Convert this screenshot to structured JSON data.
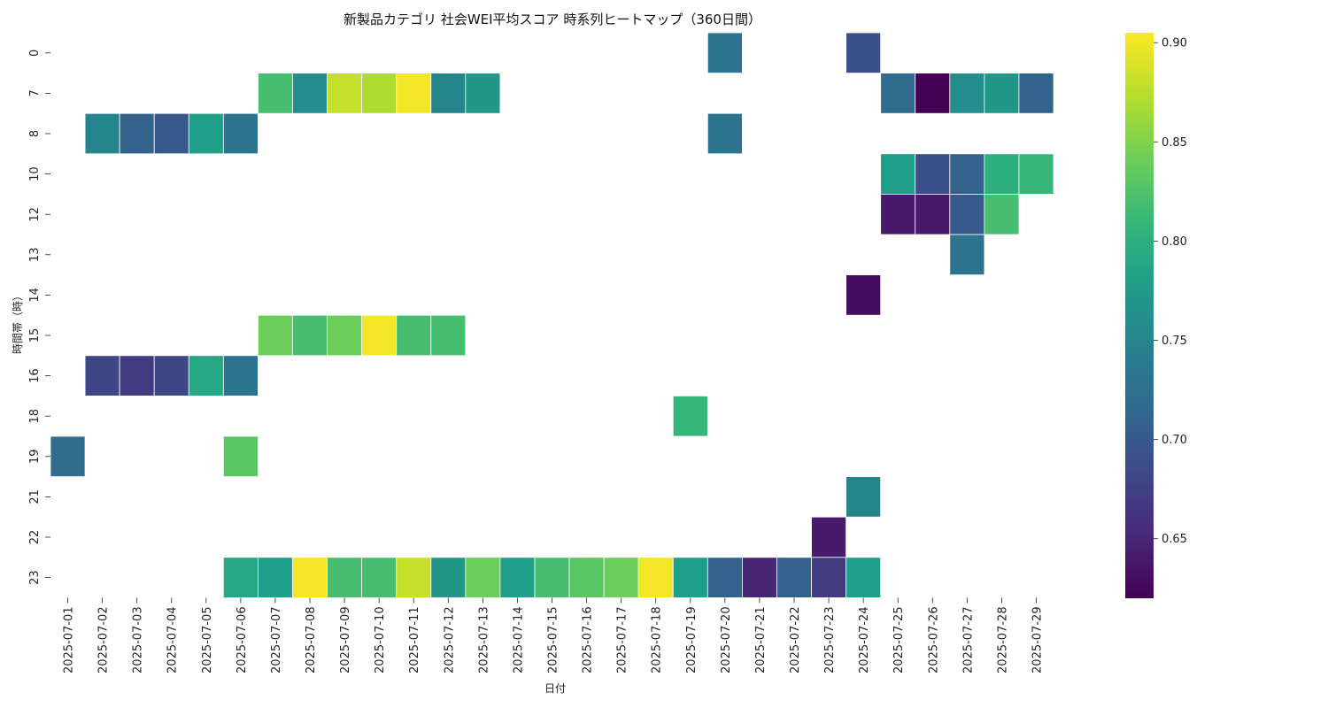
{
  "chart_data": {
    "type": "heatmap",
    "title": "新製品カテゴリ 社会WEI平均スコア 時系列ヒートマップ（360日間）",
    "xlabel": "日付",
    "ylabel": "時間帯（時）",
    "x": [
      "2025-07-01",
      "2025-07-02",
      "2025-07-03",
      "2025-07-04",
      "2025-07-05",
      "2025-07-06",
      "2025-07-07",
      "2025-07-08",
      "2025-07-09",
      "2025-07-10",
      "2025-07-11",
      "2025-07-12",
      "2025-07-13",
      "2025-07-14",
      "2025-07-15",
      "2025-07-16",
      "2025-07-17",
      "2025-07-18",
      "2025-07-19",
      "2025-07-20",
      "2025-07-21",
      "2025-07-22",
      "2025-07-23",
      "2025-07-24",
      "2025-07-25",
      "2025-07-26",
      "2025-07-27",
      "2025-07-28",
      "2025-07-29"
    ],
    "y": [
      "0",
      "7",
      "8",
      "10",
      "12",
      "13",
      "14",
      "15",
      "16",
      "18",
      "19",
      "21",
      "22",
      "23"
    ],
    "values": [
      [
        null,
        null,
        null,
        null,
        null,
        null,
        null,
        null,
        null,
        null,
        null,
        null,
        null,
        null,
        null,
        null,
        null,
        null,
        null,
        0.73,
        null,
        null,
        null,
        0.69,
        null,
        null,
        null,
        null,
        null
      ],
      [
        null,
        null,
        null,
        null,
        null,
        null,
        0.82,
        0.76,
        0.88,
        0.87,
        0.9,
        0.75,
        0.77,
        null,
        null,
        null,
        null,
        null,
        null,
        null,
        null,
        null,
        null,
        null,
        0.72,
        0.62,
        0.76,
        0.77,
        0.71
      ],
      [
        null,
        0.75,
        0.71,
        0.7,
        0.78,
        0.73,
        null,
        null,
        null,
        null,
        null,
        null,
        null,
        null,
        null,
        null,
        null,
        null,
        null,
        0.73,
        null,
        null,
        null,
        null,
        null,
        null,
        null,
        null,
        null
      ],
      [
        null,
        null,
        null,
        null,
        null,
        null,
        null,
        null,
        null,
        null,
        null,
        null,
        null,
        null,
        null,
        null,
        null,
        null,
        null,
        null,
        null,
        null,
        null,
        null,
        0.78,
        0.69,
        0.71,
        0.8,
        0.81
      ],
      [
        null,
        null,
        null,
        null,
        null,
        null,
        null,
        null,
        null,
        null,
        null,
        null,
        null,
        null,
        null,
        null,
        null,
        null,
        null,
        null,
        null,
        null,
        null,
        null,
        0.64,
        0.64,
        0.7,
        0.82,
        null
      ],
      [
        null,
        null,
        null,
        null,
        null,
        null,
        null,
        null,
        null,
        null,
        null,
        null,
        null,
        null,
        null,
        null,
        null,
        null,
        null,
        null,
        null,
        null,
        null,
        null,
        null,
        null,
        0.73,
        null,
        null
      ],
      [
        null,
        null,
        null,
        null,
        null,
        null,
        null,
        null,
        null,
        null,
        null,
        null,
        null,
        null,
        null,
        null,
        null,
        null,
        null,
        null,
        null,
        null,
        null,
        0.63,
        null,
        null,
        null,
        null,
        null
      ],
      [
        null,
        null,
        null,
        null,
        null,
        null,
        0.84,
        0.82,
        0.84,
        0.9,
        0.82,
        0.82,
        null,
        null,
        null,
        null,
        null,
        null,
        null,
        null,
        null,
        null,
        null,
        null,
        null,
        null,
        null,
        null,
        null
      ],
      [
        null,
        0.68,
        0.67,
        0.68,
        0.79,
        0.73,
        null,
        null,
        null,
        null,
        null,
        null,
        null,
        null,
        null,
        null,
        null,
        null,
        null,
        null,
        null,
        null,
        null,
        null,
        null,
        null,
        null,
        null,
        null
      ],
      [
        null,
        null,
        null,
        null,
        null,
        null,
        null,
        null,
        null,
        null,
        null,
        null,
        null,
        null,
        null,
        null,
        null,
        null,
        0.81,
        null,
        null,
        null,
        null,
        null,
        null,
        null,
        null,
        null,
        null
      ],
      [
        0.72,
        null,
        null,
        null,
        null,
        0.83,
        null,
        null,
        null,
        null,
        null,
        null,
        null,
        null,
        null,
        null,
        null,
        null,
        null,
        null,
        null,
        null,
        null,
        null,
        null,
        null,
        null,
        null,
        null
      ],
      [
        null,
        null,
        null,
        null,
        null,
        null,
        null,
        null,
        null,
        null,
        null,
        null,
        null,
        null,
        null,
        null,
        null,
        null,
        null,
        null,
        null,
        null,
        null,
        0.75,
        null,
        null,
        null,
        null,
        null
      ],
      [
        null,
        null,
        null,
        null,
        null,
        null,
        null,
        null,
        null,
        null,
        null,
        null,
        null,
        null,
        null,
        null,
        null,
        null,
        null,
        null,
        null,
        null,
        0.64,
        null,
        null,
        null,
        null,
        null,
        null
      ],
      [
        null,
        null,
        null,
        null,
        null,
        0.79,
        0.78,
        0.9,
        0.82,
        0.82,
        0.88,
        0.77,
        0.84,
        0.78,
        0.82,
        0.83,
        0.84,
        0.9,
        0.78,
        0.71,
        0.65,
        0.71,
        0.67,
        0.78,
        null,
        null,
        null,
        null,
        null
      ]
    ],
    "colorbar": {
      "min": 0.62,
      "max": 0.905,
      "ticks": [
        0.65,
        0.7,
        0.75,
        0.8,
        0.85,
        0.9
      ],
      "tick_labels": [
        "0.65",
        "0.70",
        "0.75",
        "0.80",
        "0.85",
        "0.90"
      ]
    },
    "colormap": "viridis",
    "colormap_stops": [
      "#440154",
      "#482878",
      "#3e4989",
      "#31688e",
      "#26828e",
      "#1f9e89",
      "#35b779",
      "#6ece58",
      "#b5de2b",
      "#fde725"
    ],
    "grid": false
  }
}
